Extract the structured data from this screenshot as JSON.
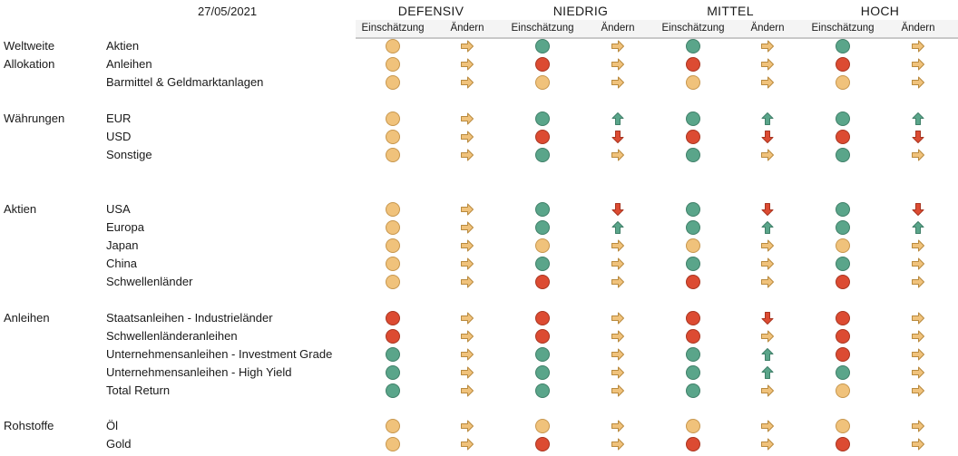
{
  "date": "27/05/2021",
  "profiles": [
    "DEFENSIV",
    "NIEDRIG",
    "MITTEL",
    "HOCH"
  ],
  "subheaders": {
    "assessment": "Einschätzung",
    "change": "Ändern"
  },
  "colors": {
    "green": "#5aa58a",
    "red": "#dc4b32",
    "yellow": "#f0c27b",
    "arrow_right": "#f0c27b",
    "arrow_up": "#5aa58a",
    "arrow_down": "#dc4b32"
  },
  "rows": [
    {
      "group": "Weltweite",
      "label": "Aktien",
      "v": [
        "y",
        "r",
        "g",
        "r",
        "g",
        "r",
        "g",
        "r"
      ]
    },
    {
      "group": "Allokation",
      "label": "Anleihen",
      "v": [
        "y",
        "r",
        "r",
        "r",
        "r",
        "r",
        "r",
        "r"
      ]
    },
    {
      "group": "",
      "label": "Barmittel & Geldmarktanlagen",
      "v": [
        "y",
        "r",
        "y",
        "r",
        "y",
        "r",
        "y",
        "r"
      ]
    },
    {
      "group": "Währungen",
      "label": "EUR",
      "v": [
        "y",
        "r",
        "g",
        "u",
        "g",
        "u",
        "g",
        "u"
      ]
    },
    {
      "group": "",
      "label": "USD",
      "v": [
        "y",
        "r",
        "r",
        "d",
        "r",
        "d",
        "r",
        "d"
      ]
    },
    {
      "group": "",
      "label": "Sonstige",
      "v": [
        "y",
        "r",
        "g",
        "r",
        "g",
        "r",
        "g",
        "r"
      ]
    },
    {
      "group": "Aktien",
      "label": "USA",
      "v": [
        "y",
        "r",
        "g",
        "d",
        "g",
        "d",
        "g",
        "d"
      ]
    },
    {
      "group": "",
      "label": "Europa",
      "v": [
        "y",
        "r",
        "g",
        "u",
        "g",
        "u",
        "g",
        "u"
      ]
    },
    {
      "group": "",
      "label": "Japan",
      "v": [
        "y",
        "r",
        "y",
        "r",
        "y",
        "r",
        "y",
        "r"
      ]
    },
    {
      "group": "",
      "label": "China",
      "v": [
        "y",
        "r",
        "g",
        "r",
        "g",
        "r",
        "g",
        "r"
      ]
    },
    {
      "group": "",
      "label": "Schwellenländer",
      "v": [
        "y",
        "r",
        "r",
        "r",
        "r",
        "r",
        "r",
        "r"
      ]
    },
    {
      "group": "Anleihen",
      "label": "Staatsanleihen - Industrieländer",
      "v": [
        "r",
        "r",
        "r",
        "r",
        "r",
        "d",
        "r",
        "r"
      ]
    },
    {
      "group": "",
      "label": "Schwellenländeranleihen",
      "v": [
        "r",
        "r",
        "r",
        "r",
        "r",
        "r",
        "r",
        "r"
      ]
    },
    {
      "group": "",
      "label": "Unternehmensanleihen - Investment Grade",
      "v": [
        "g",
        "r",
        "g",
        "r",
        "g",
        "u",
        "r",
        "r"
      ]
    },
    {
      "group": "",
      "label": "Unternehmensanleihen - High Yield",
      "v": [
        "g",
        "r",
        "g",
        "r",
        "g",
        "u",
        "g",
        "r"
      ]
    },
    {
      "group": "",
      "label": "Total Return",
      "v": [
        "g",
        "r",
        "g",
        "r",
        "g",
        "r",
        "y",
        "r"
      ]
    },
    {
      "group": "Rohstoffe",
      "label": "Öl",
      "v": [
        "y",
        "r",
        "y",
        "r",
        "y",
        "r",
        "y",
        "r"
      ]
    },
    {
      "group": "",
      "label": "Gold",
      "v": [
        "y",
        "r",
        "r",
        "r",
        "r",
        "r",
        "r",
        "r"
      ]
    }
  ]
}
